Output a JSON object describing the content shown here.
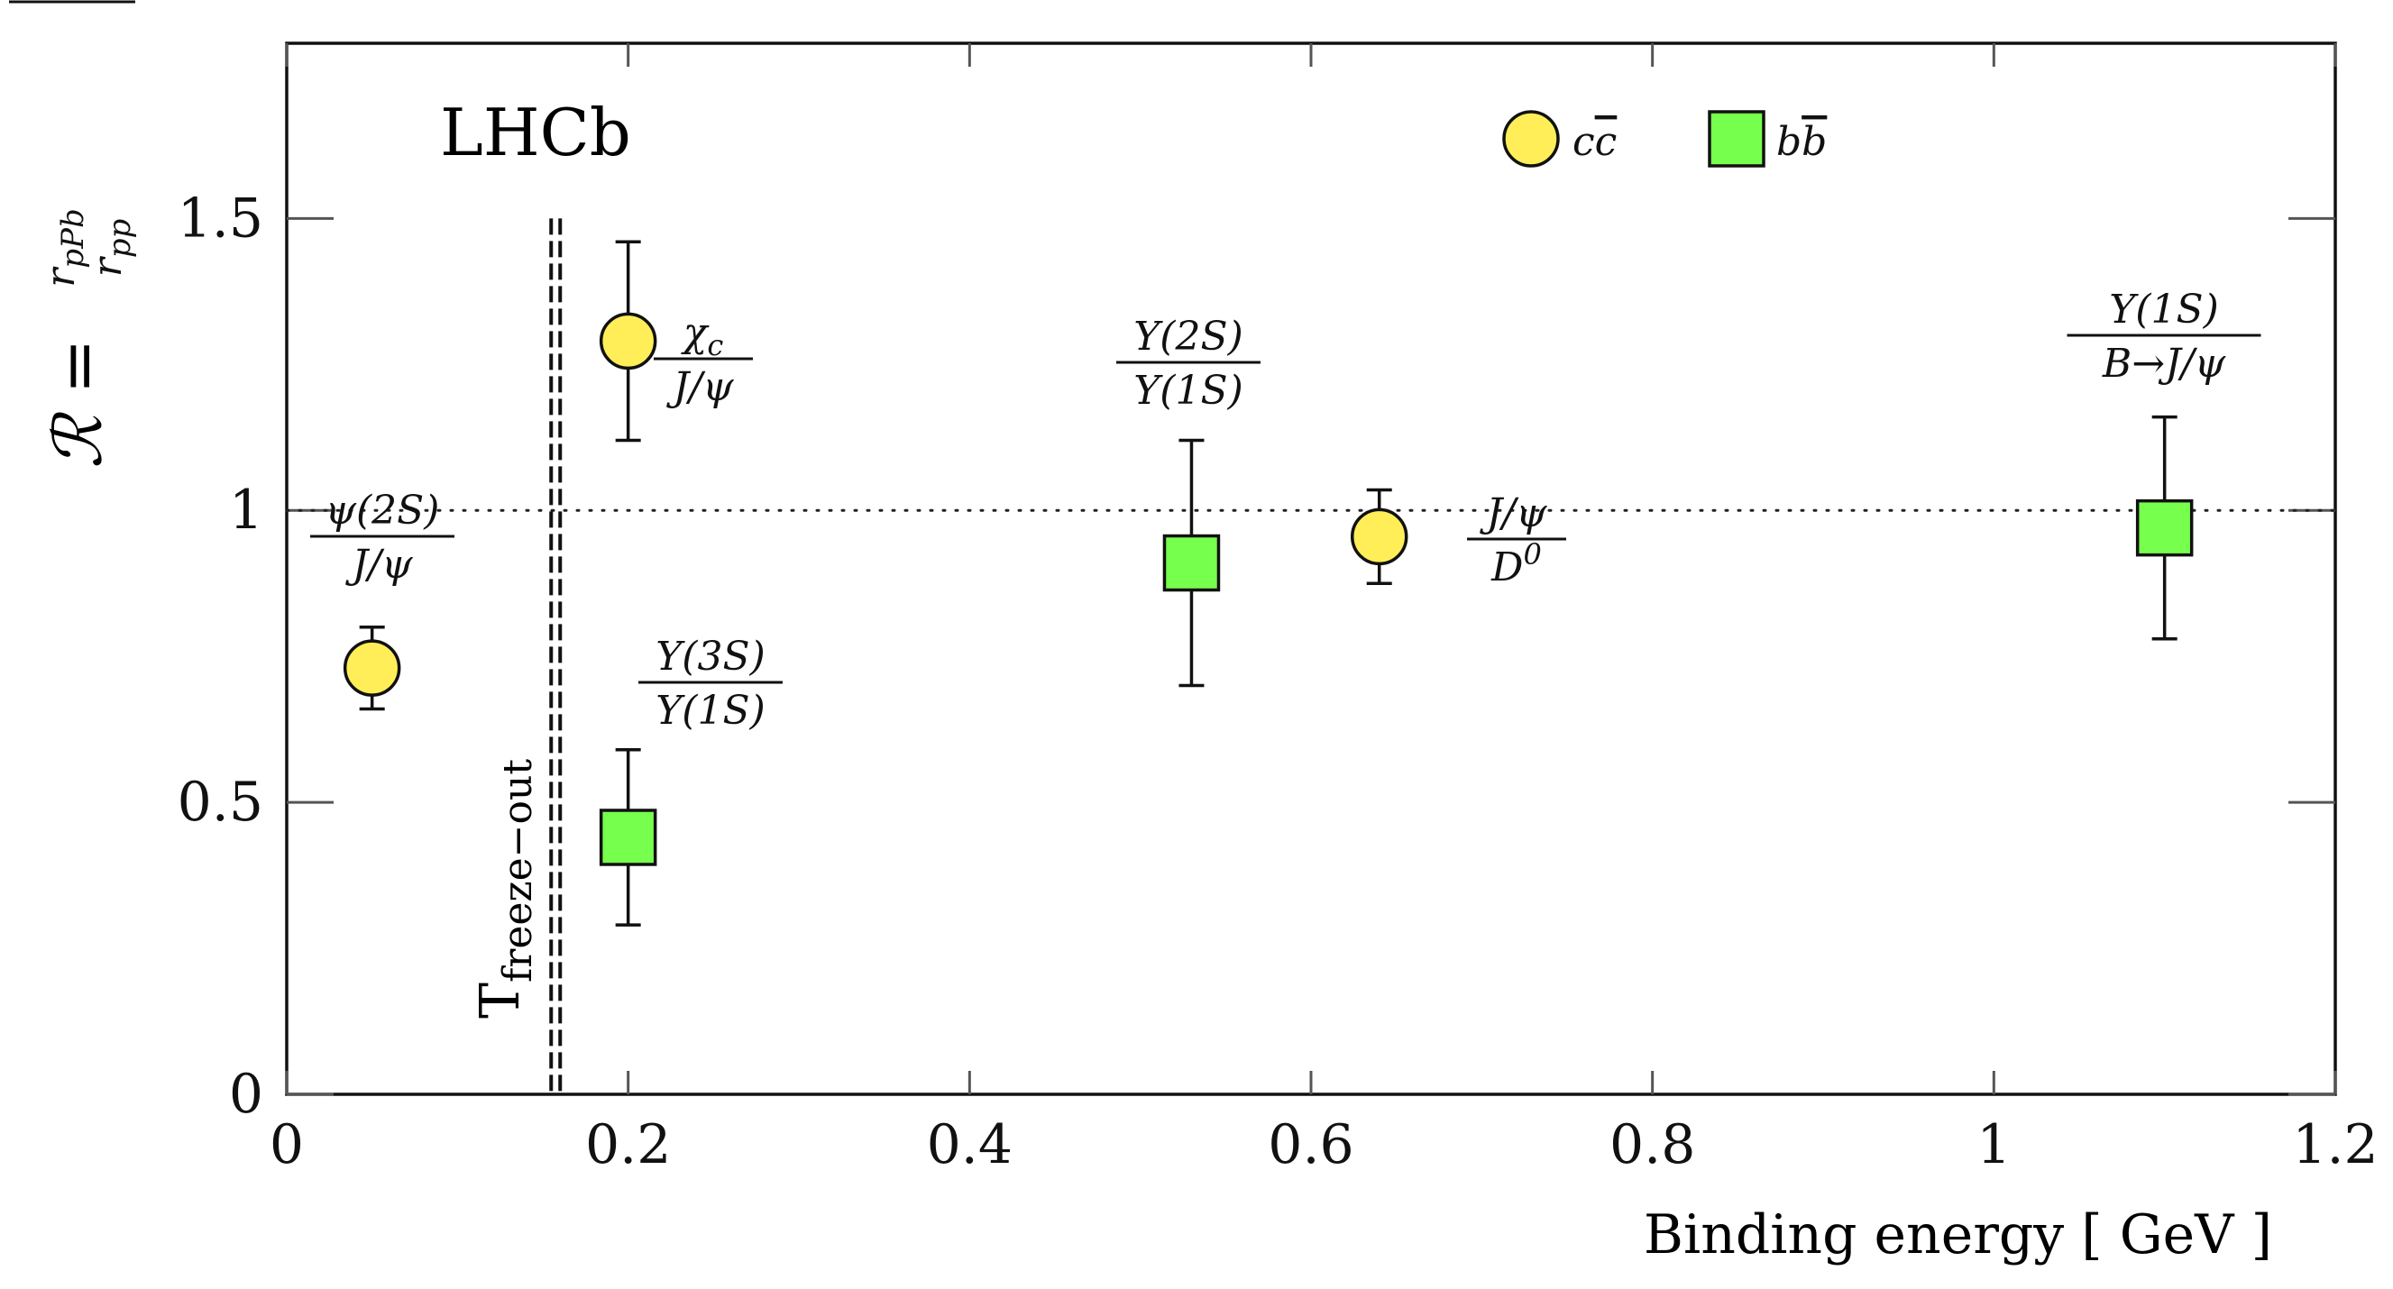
{
  "chart_data": {
    "type": "scatter",
    "title": "",
    "experiment_label": "LHCb",
    "xlabel": "Binding energy [ GeV ]",
    "ylabel": "ℛ = r_pPb / r_pp",
    "ylabel_parts": {
      "symbol": "ℛ",
      "equals": "=",
      "numerator": "r",
      "numerator_sub": "pPb",
      "denominator": "r",
      "denominator_sub": "pp"
    },
    "xlim": [
      0,
      1.2
    ],
    "ylim": [
      0,
      1.8
    ],
    "xticks": [
      0,
      0.2,
      0.4,
      0.6,
      0.8,
      1,
      1.2
    ],
    "xtick_labels": [
      "0",
      "0.2",
      "0.4",
      "0.6",
      "0.8",
      "1",
      "1.2"
    ],
    "yticks": [
      0,
      0.5,
      1,
      1.5
    ],
    "ytick_labels": [
      "0",
      "0.5",
      "1",
      "1.5"
    ],
    "reference_line": {
      "y": 1.0,
      "style": "dotted"
    },
    "vertical_line": {
      "x": 0.157,
      "style": "double-dashed",
      "label": "T",
      "label_sub": "freeze−out"
    },
    "legend": {
      "placement": "top-right",
      "entries": [
        {
          "name": "c c̄",
          "main": "c",
          "bar": "c",
          "marker": "circle",
          "color": "#ffee58"
        },
        {
          "name": "b b̄",
          "main": "b",
          "bar": "b",
          "marker": "square",
          "color": "#77ff4d"
        }
      ]
    },
    "series": [
      {
        "name": "c c̄",
        "marker": "circle",
        "color": "#ffee58",
        "points": [
          {
            "x": 0.05,
            "y": 0.73,
            "err_low": 0.66,
            "err_high": 0.8,
            "label_num": "ψ(2S)",
            "label_den": "J/ψ"
          },
          {
            "x": 0.2,
            "y": 1.29,
            "err_low": 1.12,
            "err_high": 1.46,
            "label_num": "χ",
            "label_num_sub": "c",
            "label_den": "J/ψ"
          },
          {
            "x": 0.64,
            "y": 0.955,
            "err_low": 0.875,
            "err_high": 1.035,
            "label_num": "J/ψ",
            "label_den": "D",
            "label_den_sup": "0"
          }
        ]
      },
      {
        "name": "b b̄",
        "marker": "square",
        "color": "#77ff4d",
        "points": [
          {
            "x": 0.2,
            "y": 0.44,
            "err_low": 0.29,
            "err_high": 0.59,
            "label_num": "Υ(3S)",
            "label_den": "Υ(1S)"
          },
          {
            "x": 0.53,
            "y": 0.91,
            "err_low": 0.7,
            "err_high": 1.12,
            "label_num": "Υ(2S)",
            "label_den": "Υ(1S)"
          },
          {
            "x": 1.1,
            "y": 0.97,
            "err_low": 0.78,
            "err_high": 1.16,
            "label_num": "Υ(1S)",
            "label_den": "B→J/ψ"
          }
        ]
      }
    ]
  },
  "colors": {
    "axis": "#111111",
    "tick": "#555555",
    "cc_fill": "#ffee58",
    "bb_fill": "#77ff4d"
  }
}
